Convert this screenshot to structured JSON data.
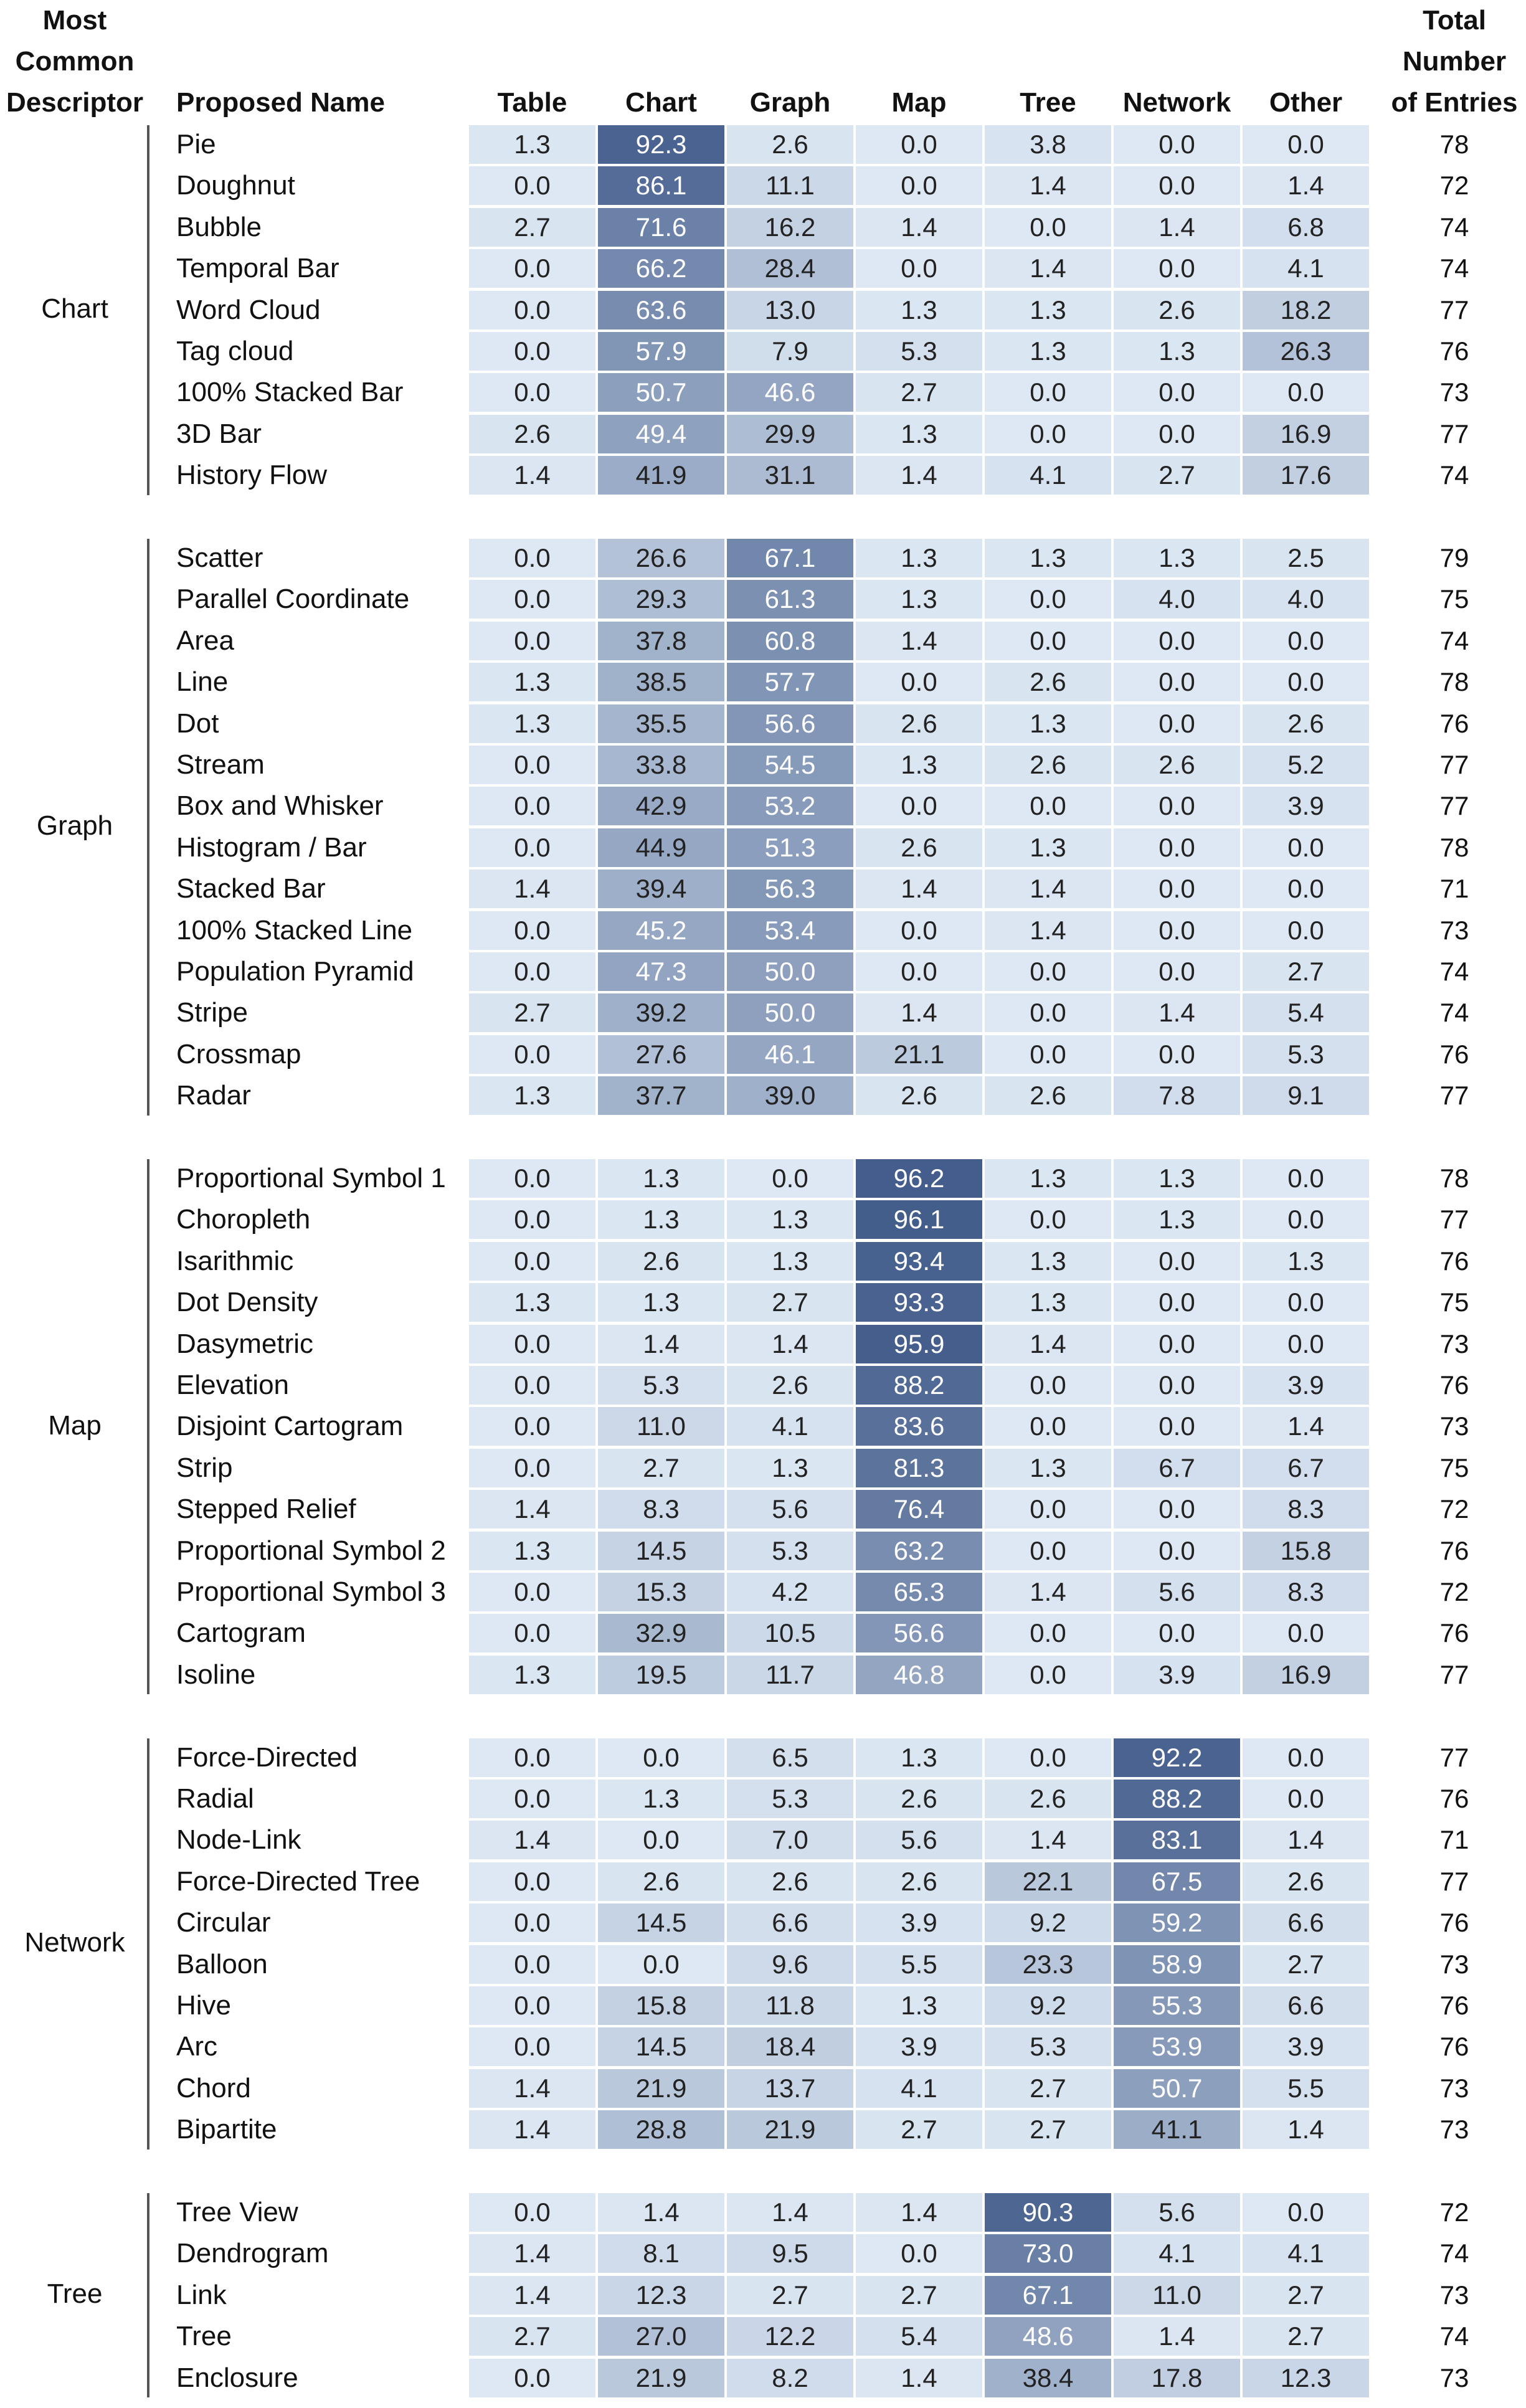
{
  "chart_data": {
    "type": "heatmap",
    "headers": {
      "descriptor": [
        "Most",
        "Common",
        "Descriptor"
      ],
      "name": "Proposed Name",
      "total": [
        "Total",
        "Number",
        "of Entries"
      ]
    },
    "columns": [
      "Table",
      "Chart",
      "Graph",
      "Map",
      "Tree",
      "Network",
      "Other"
    ],
    "groups": [
      {
        "descriptor": "Chart",
        "rows": [
          {
            "name": "Pie",
            "values": [
              1.3,
              92.3,
              2.6,
              0.0,
              3.8,
              0.0,
              0.0
            ],
            "total": 78
          },
          {
            "name": "Doughnut",
            "values": [
              0.0,
              86.1,
              11.1,
              0.0,
              1.4,
              0.0,
              1.4
            ],
            "total": 72
          },
          {
            "name": "Bubble",
            "values": [
              2.7,
              71.6,
              16.2,
              1.4,
              0.0,
              1.4,
              6.8
            ],
            "total": 74
          },
          {
            "name": "Temporal Bar",
            "values": [
              0.0,
              66.2,
              28.4,
              0.0,
              1.4,
              0.0,
              4.1
            ],
            "total": 74
          },
          {
            "name": "Word Cloud",
            "values": [
              0.0,
              63.6,
              13.0,
              1.3,
              1.3,
              2.6,
              18.2
            ],
            "total": 77
          },
          {
            "name": "Tag cloud",
            "values": [
              0.0,
              57.9,
              7.9,
              5.3,
              1.3,
              1.3,
              26.3
            ],
            "total": 76
          },
          {
            "name": "100% Stacked Bar",
            "values": [
              0.0,
              50.7,
              46.6,
              2.7,
              0.0,
              0.0,
              0.0
            ],
            "total": 73
          },
          {
            "name": "3D Bar",
            "values": [
              2.6,
              49.4,
              29.9,
              1.3,
              0.0,
              0.0,
              16.9
            ],
            "total": 77
          },
          {
            "name": "History Flow",
            "values": [
              1.4,
              41.9,
              31.1,
              1.4,
              4.1,
              2.7,
              17.6
            ],
            "total": 74
          }
        ]
      },
      {
        "descriptor": "Graph",
        "rows": [
          {
            "name": "Scatter",
            "values": [
              0.0,
              26.6,
              67.1,
              1.3,
              1.3,
              1.3,
              2.5
            ],
            "total": 79
          },
          {
            "name": "Parallel Coordinate",
            "values": [
              0.0,
              29.3,
              61.3,
              1.3,
              0.0,
              4.0,
              4.0
            ],
            "total": 75
          },
          {
            "name": "Area",
            "values": [
              0.0,
              37.8,
              60.8,
              1.4,
              0.0,
              0.0,
              0.0
            ],
            "total": 74
          },
          {
            "name": "Line",
            "values": [
              1.3,
              38.5,
              57.7,
              0.0,
              2.6,
              0.0,
              0.0
            ],
            "total": 78
          },
          {
            "name": "Dot",
            "values": [
              1.3,
              35.5,
              56.6,
              2.6,
              1.3,
              0.0,
              2.6
            ],
            "total": 76
          },
          {
            "name": "Stream",
            "values": [
              0.0,
              33.8,
              54.5,
              1.3,
              2.6,
              2.6,
              5.2
            ],
            "total": 77
          },
          {
            "name": "Box and Whisker",
            "values": [
              0.0,
              42.9,
              53.2,
              0.0,
              0.0,
              0.0,
              3.9
            ],
            "total": 77
          },
          {
            "name": "Histogram / Bar",
            "values": [
              0.0,
              44.9,
              51.3,
              2.6,
              1.3,
              0.0,
              0.0
            ],
            "total": 78
          },
          {
            "name": "Stacked Bar",
            "values": [
              1.4,
              39.4,
              56.3,
              1.4,
              1.4,
              0.0,
              0.0
            ],
            "total": 71
          },
          {
            "name": "100% Stacked Line",
            "values": [
              0.0,
              45.2,
              53.4,
              0.0,
              1.4,
              0.0,
              0.0
            ],
            "total": 73
          },
          {
            "name": "Population Pyramid",
            "values": [
              0.0,
              47.3,
              50.0,
              0.0,
              0.0,
              0.0,
              2.7
            ],
            "total": 74
          },
          {
            "name": "Stripe",
            "values": [
              2.7,
              39.2,
              50.0,
              1.4,
              0.0,
              1.4,
              5.4
            ],
            "total": 74
          },
          {
            "name": "Crossmap",
            "values": [
              0.0,
              27.6,
              46.1,
              21.1,
              0.0,
              0.0,
              5.3
            ],
            "total": 76
          },
          {
            "name": "Radar",
            "values": [
              1.3,
              37.7,
              39.0,
              2.6,
              2.6,
              7.8,
              9.1
            ],
            "total": 77
          }
        ]
      },
      {
        "descriptor": "Map",
        "rows": [
          {
            "name": "Proportional Symbol 1",
            "values": [
              0.0,
              1.3,
              0.0,
              96.2,
              1.3,
              1.3,
              0.0
            ],
            "total": 78
          },
          {
            "name": "Choropleth",
            "values": [
              0.0,
              1.3,
              1.3,
              96.1,
              0.0,
              1.3,
              0.0
            ],
            "total": 77
          },
          {
            "name": "Isarithmic",
            "values": [
              0.0,
              2.6,
              1.3,
              93.4,
              1.3,
              0.0,
              1.3
            ],
            "total": 76
          },
          {
            "name": "Dot Density",
            "values": [
              1.3,
              1.3,
              2.7,
              93.3,
              1.3,
              0.0,
              0.0
            ],
            "total": 75
          },
          {
            "name": "Dasymetric",
            "values": [
              0.0,
              1.4,
              1.4,
              95.9,
              1.4,
              0.0,
              0.0
            ],
            "total": 73
          },
          {
            "name": "Elevation",
            "values": [
              0.0,
              5.3,
              2.6,
              88.2,
              0.0,
              0.0,
              3.9
            ],
            "total": 76
          },
          {
            "name": "Disjoint Cartogram",
            "values": [
              0.0,
              11.0,
              4.1,
              83.6,
              0.0,
              0.0,
              1.4
            ],
            "total": 73
          },
          {
            "name": "Strip",
            "values": [
              0.0,
              2.7,
              1.3,
              81.3,
              1.3,
              6.7,
              6.7
            ],
            "total": 75
          },
          {
            "name": "Stepped Relief",
            "values": [
              1.4,
              8.3,
              5.6,
              76.4,
              0.0,
              0.0,
              8.3
            ],
            "total": 72
          },
          {
            "name": "Proportional Symbol 2",
            "values": [
              1.3,
              14.5,
              5.3,
              63.2,
              0.0,
              0.0,
              15.8
            ],
            "total": 76
          },
          {
            "name": "Proportional Symbol 3",
            "values": [
              0.0,
              15.3,
              4.2,
              65.3,
              1.4,
              5.6,
              8.3
            ],
            "total": 72
          },
          {
            "name": "Cartogram",
            "values": [
              0.0,
              32.9,
              10.5,
              56.6,
              0.0,
              0.0,
              0.0
            ],
            "total": 76
          },
          {
            "name": "Isoline",
            "values": [
              1.3,
              19.5,
              11.7,
              46.8,
              0.0,
              3.9,
              16.9
            ],
            "total": 77
          }
        ]
      },
      {
        "descriptor": "Network",
        "rows": [
          {
            "name": "Force-Directed",
            "values": [
              0.0,
              0.0,
              6.5,
              1.3,
              0.0,
              92.2,
              0.0
            ],
            "total": 77
          },
          {
            "name": "Radial",
            "values": [
              0.0,
              1.3,
              5.3,
              2.6,
              2.6,
              88.2,
              0.0
            ],
            "total": 76
          },
          {
            "name": "Node-Link",
            "values": [
              1.4,
              0.0,
              7.0,
              5.6,
              1.4,
              83.1,
              1.4
            ],
            "total": 71
          },
          {
            "name": "Force-Directed Tree",
            "values": [
              0.0,
              2.6,
              2.6,
              2.6,
              22.1,
              67.5,
              2.6
            ],
            "total": 77
          },
          {
            "name": "Circular",
            "values": [
              0.0,
              14.5,
              6.6,
              3.9,
              9.2,
              59.2,
              6.6
            ],
            "total": 76
          },
          {
            "name": "Balloon",
            "values": [
              0.0,
              0.0,
              9.6,
              5.5,
              23.3,
              58.9,
              2.7
            ],
            "total": 73
          },
          {
            "name": "Hive",
            "values": [
              0.0,
              15.8,
              11.8,
              1.3,
              9.2,
              55.3,
              6.6
            ],
            "total": 76
          },
          {
            "name": "Arc",
            "values": [
              0.0,
              14.5,
              18.4,
              3.9,
              5.3,
              53.9,
              3.9
            ],
            "total": 76
          },
          {
            "name": "Chord",
            "values": [
              1.4,
              21.9,
              13.7,
              4.1,
              2.7,
              50.7,
              5.5
            ],
            "total": 73
          },
          {
            "name": "Bipartite",
            "values": [
              1.4,
              28.8,
              21.9,
              2.7,
              2.7,
              41.1,
              1.4
            ],
            "total": 73
          }
        ]
      },
      {
        "descriptor": "Tree",
        "rows": [
          {
            "name": "Tree View",
            "values": [
              0.0,
              1.4,
              1.4,
              1.4,
              90.3,
              5.6,
              0.0
            ],
            "total": 72
          },
          {
            "name": "Dendrogram",
            "values": [
              1.4,
              8.1,
              9.5,
              0.0,
              73.0,
              4.1,
              4.1
            ],
            "total": 74
          },
          {
            "name": "Link",
            "values": [
              1.4,
              12.3,
              2.7,
              2.7,
              67.1,
              11.0,
              2.7
            ],
            "total": 73
          },
          {
            "name": "Tree",
            "values": [
              2.7,
              27.0,
              12.2,
              5.4,
              48.6,
              1.4,
              2.7
            ],
            "total": 74
          },
          {
            "name": "Enclosure",
            "values": [
              0.0,
              21.9,
              8.2,
              1.4,
              38.4,
              17.8,
              12.3
            ],
            "total": 73
          }
        ]
      }
    ],
    "color_scale": {
      "low": "#dde8f4",
      "high": "#3e5888",
      "text_dark": "#222222",
      "text_light": "#ffffff",
      "min": 0,
      "max": 100
    }
  }
}
